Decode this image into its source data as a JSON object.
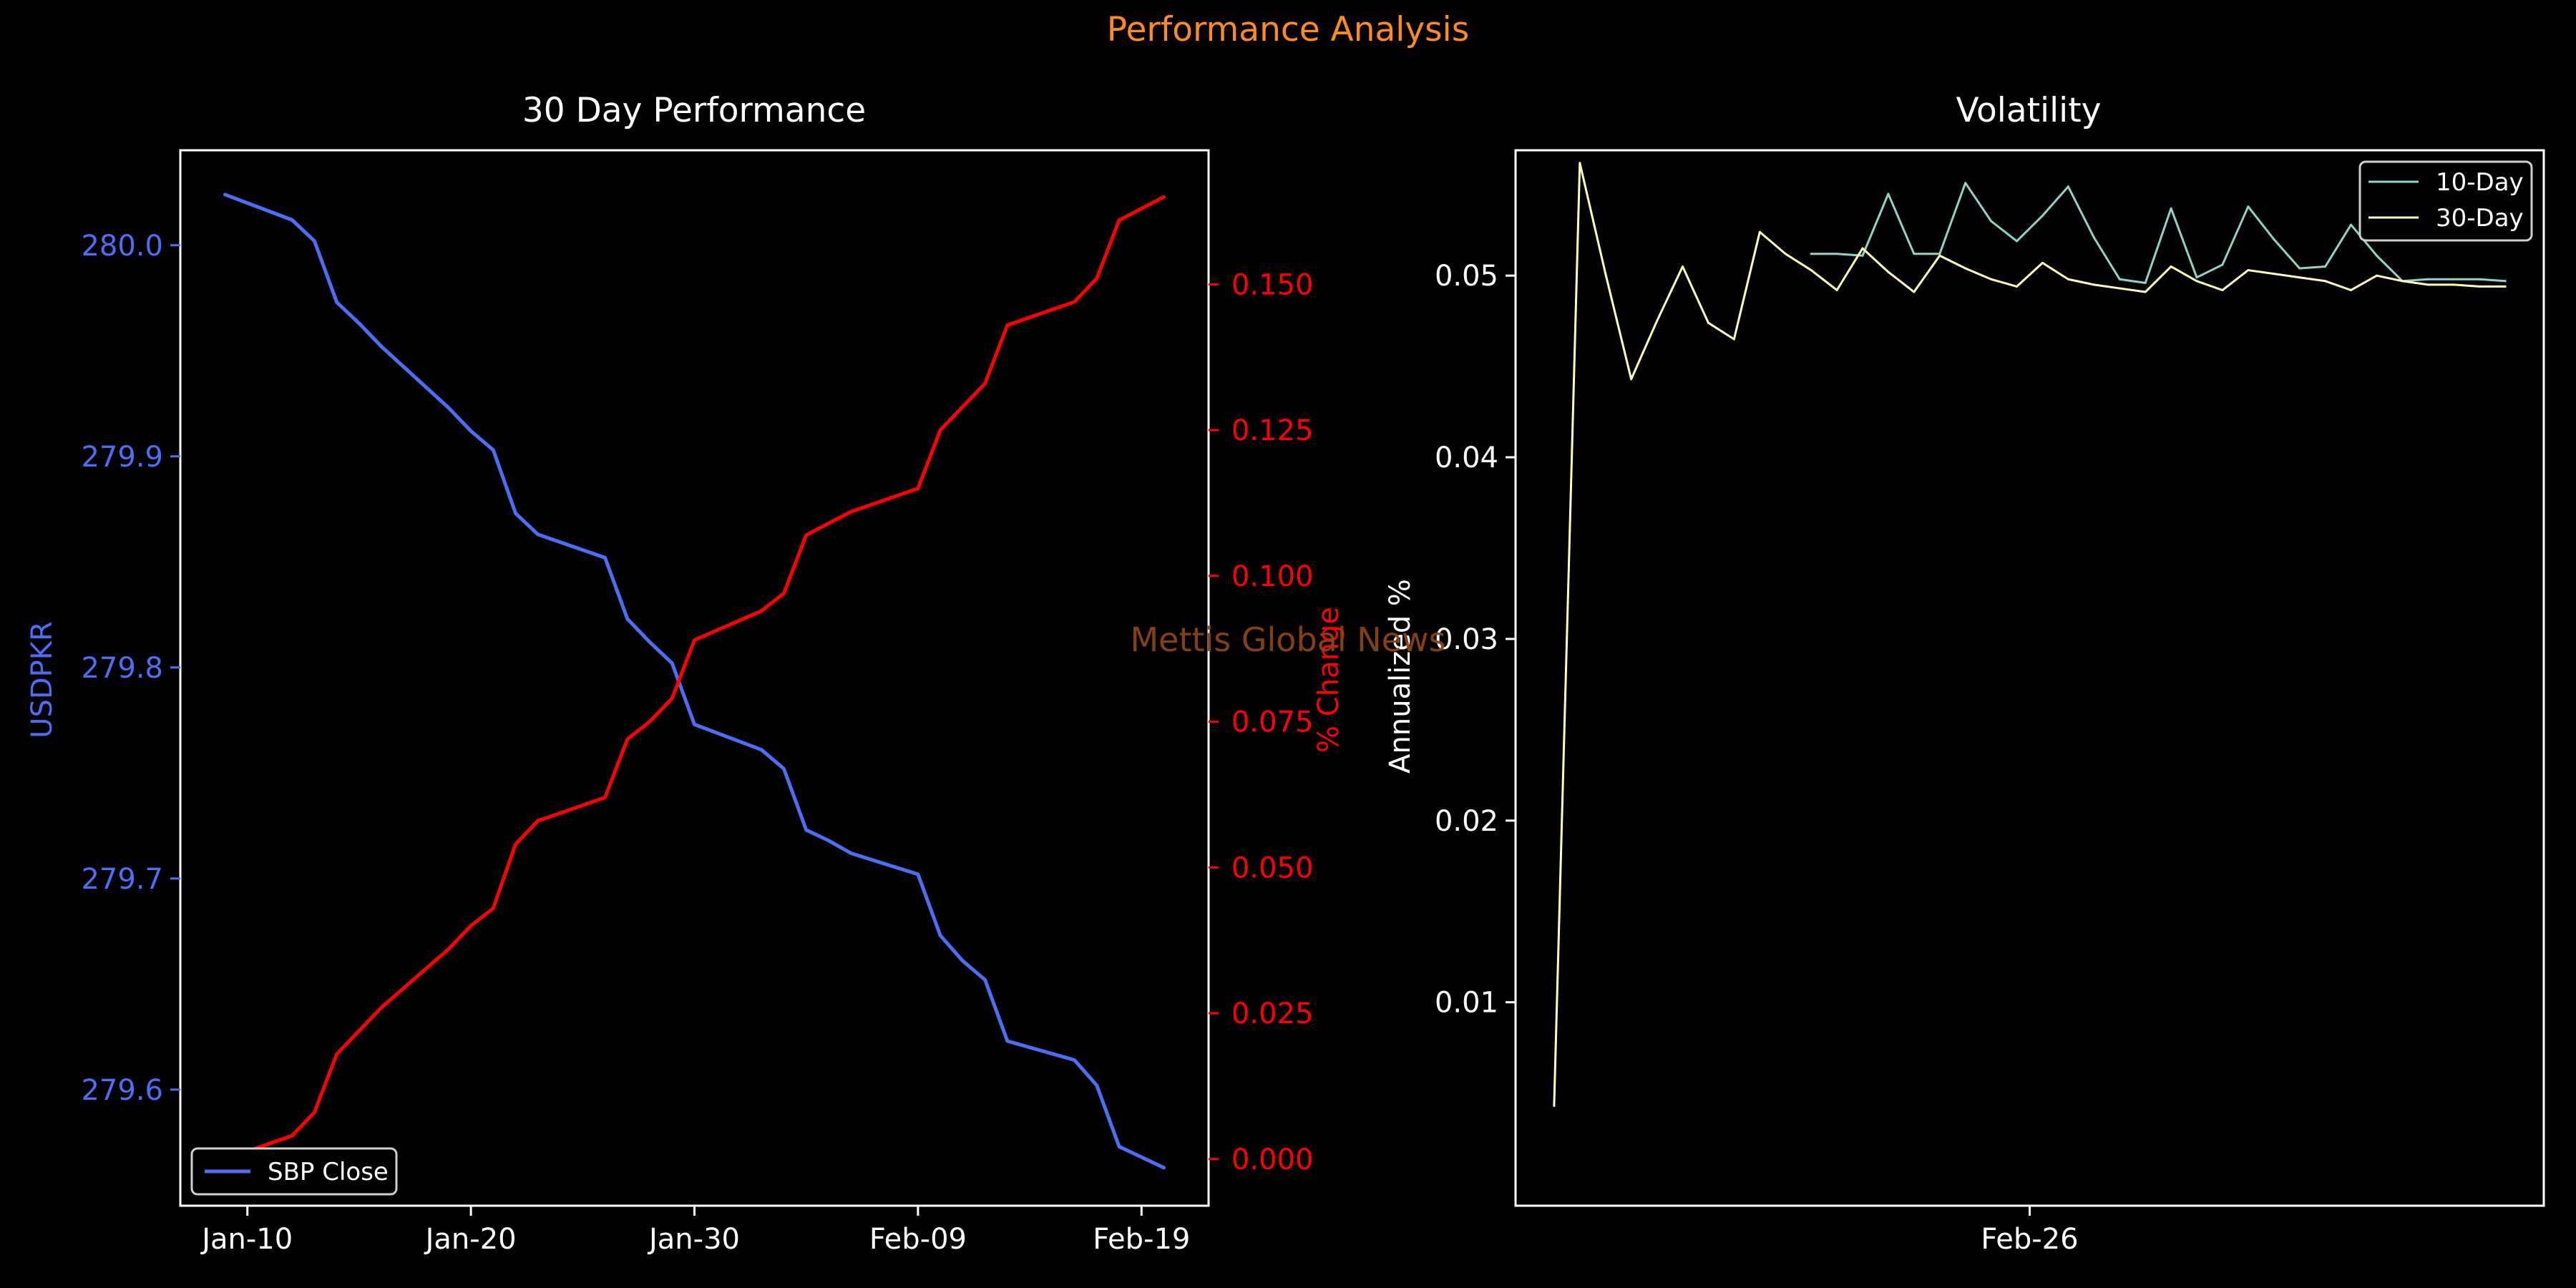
{
  "page": {
    "suptitle": "Performance Analysis",
    "watermark": "Mettis Global News"
  },
  "colors": {
    "background": "#000000",
    "axes": "#ffffff",
    "suptitle": "#ff8c1a",
    "watermark": "#8b4513",
    "usdpkr": "#4c6ef5",
    "pct": "#ff0000",
    "vol10": "#8fd3c7",
    "vol30": "#ffffb3"
  },
  "chart_data": [
    {
      "type": "line",
      "title": "30 Day Performance",
      "xlabel": "",
      "x_ticks": [
        "Jan-10",
        "Jan-20",
        "Jan-30",
        "Feb-09",
        "Feb-19"
      ],
      "y_left_label": "USDPKR",
      "y_left_ticks": [
        "279.6",
        "279.7",
        "279.8",
        "279.9",
        "280.0"
      ],
      "y_left_range": [
        279.545,
        280.045
      ],
      "y_right_label": "% Change",
      "y_right_ticks": [
        "0.000",
        "0.025",
        "0.050",
        "0.075",
        "0.100",
        "0.125",
        "0.150"
      ],
      "y_right_range": [
        -0.008,
        0.173
      ],
      "legend": {
        "position": "lower-left",
        "entries": [
          "SBP Close"
        ]
      },
      "series": [
        {
          "name": "SBP Close",
          "axis": "left",
          "points": [
            [
              "Jan-09",
              280.024
            ],
            [
              "Jan-12",
              280.012
            ],
            [
              "Jan-13",
              280.002
            ],
            [
              "Jan-14",
              279.973
            ],
            [
              "Jan-15",
              279.963
            ],
            [
              "Jan-16",
              279.952
            ],
            [
              "Jan-19",
              279.923
            ],
            [
              "Jan-20",
              279.912
            ],
            [
              "Jan-21",
              279.903
            ],
            [
              "Jan-22",
              279.873
            ],
            [
              "Jan-23",
              279.863
            ],
            [
              "Jan-26",
              279.852
            ],
            [
              "Jan-27",
              279.823
            ],
            [
              "Jan-28",
              279.812
            ],
            [
              "Jan-29",
              279.802
            ],
            [
              "Jan-30",
              279.773
            ],
            [
              "Feb-02",
              279.761
            ],
            [
              "Feb-03",
              279.752
            ],
            [
              "Feb-04",
              279.723
            ],
            [
              "Feb-05",
              279.718
            ],
            [
              "Feb-06",
              279.712
            ],
            [
              "Feb-09",
              279.702
            ],
            [
              "Feb-10",
              279.673
            ],
            [
              "Feb-11",
              279.661
            ],
            [
              "Feb-12",
              279.652
            ],
            [
              "Feb-13",
              279.623
            ],
            [
              "Feb-16",
              279.614
            ],
            [
              "Feb-17",
              279.602
            ],
            [
              "Feb-18",
              279.573
            ],
            [
              "Feb-20",
              279.563
            ]
          ]
        },
        {
          "name": "% Change",
          "axis": "right",
          "points": [
            [
              "Jan-09",
              0.0
            ],
            [
              "Jan-12",
              0.004
            ],
            [
              "Jan-13",
              0.008
            ],
            [
              "Jan-14",
              0.018
            ],
            [
              "Jan-15",
              0.022
            ],
            [
              "Jan-16",
              0.026
            ],
            [
              "Jan-19",
              0.036
            ],
            [
              "Jan-20",
              0.04
            ],
            [
              "Jan-21",
              0.043
            ],
            [
              "Jan-22",
              0.054
            ],
            [
              "Jan-23",
              0.058
            ],
            [
              "Jan-26",
              0.062
            ],
            [
              "Jan-27",
              0.072
            ],
            [
              "Jan-28",
              0.075
            ],
            [
              "Jan-29",
              0.079
            ],
            [
              "Jan-30",
              0.089
            ],
            [
              "Feb-02",
              0.094
            ],
            [
              "Feb-03",
              0.097
            ],
            [
              "Feb-04",
              0.107
            ],
            [
              "Feb-05",
              0.109
            ],
            [
              "Feb-06",
              0.111
            ],
            [
              "Feb-09",
              0.115
            ],
            [
              "Feb-10",
              0.125
            ],
            [
              "Feb-11",
              0.129
            ],
            [
              "Feb-12",
              0.133
            ],
            [
              "Feb-13",
              0.143
            ],
            [
              "Feb-16",
              0.147
            ],
            [
              "Feb-17",
              0.151
            ],
            [
              "Feb-18",
              0.161
            ],
            [
              "Feb-20",
              0.165
            ]
          ]
        }
      ]
    },
    {
      "type": "line",
      "title": "Volatility",
      "xlabel": "",
      "x_ticks": [
        "Feb-26"
      ],
      "ylabel": "Annualized %",
      "y_ticks": [
        "0.01",
        "0.02",
        "0.03",
        "0.04",
        "0.05"
      ],
      "ylim": [
        -0.0012,
        0.0569
      ],
      "legend": {
        "position": "top-right",
        "entries": [
          "10-Day",
          "30-Day"
        ]
      },
      "series": [
        {
          "name": "10-Day",
          "x_index": [
            10,
            11,
            12,
            13,
            14,
            15,
            16,
            17,
            18,
            19,
            20,
            21,
            22,
            23,
            24,
            25,
            26,
            27,
            28,
            29,
            30,
            31,
            32,
            33,
            34,
            35,
            36,
            37
          ],
          "values": [
            0.0512,
            0.0512,
            0.0511,
            0.0545,
            0.0512,
            0.0512,
            0.0551,
            0.053,
            0.0519,
            0.0533,
            0.0549,
            0.0521,
            0.0498,
            0.0496,
            0.0537,
            0.0499,
            0.0506,
            0.0538,
            0.052,
            0.0504,
            0.0505,
            0.0528,
            0.0511,
            0.0497,
            0.0498,
            0.0498,
            0.0498,
            0.0497
          ]
        },
        {
          "name": "30-Day",
          "x_index": [
            0,
            1,
            2,
            3,
            4,
            5,
            6,
            7,
            8,
            9,
            10,
            11,
            12,
            13,
            14,
            15,
            16,
            17,
            18,
            19,
            20,
            21,
            22,
            23,
            24,
            25,
            26,
            27,
            28,
            29,
            30,
            31,
            32,
            33,
            34,
            35,
            36,
            37
          ],
          "values": [
            0.0043,
            0.0562,
            0.0501,
            0.0443,
            0.0475,
            0.0505,
            0.0474,
            0.0465,
            0.0524,
            0.0512,
            0.0503,
            0.0492,
            0.0515,
            0.0502,
            0.0491,
            0.0511,
            0.0504,
            0.0498,
            0.0494,
            0.0507,
            0.0498,
            0.0495,
            0.0493,
            0.0491,
            0.0505,
            0.0497,
            0.0492,
            0.0503,
            0.0501,
            0.0499,
            0.0497,
            0.0492,
            0.05,
            0.0497,
            0.0495,
            0.0495,
            0.0494,
            0.0494
          ]
        }
      ]
    }
  ]
}
